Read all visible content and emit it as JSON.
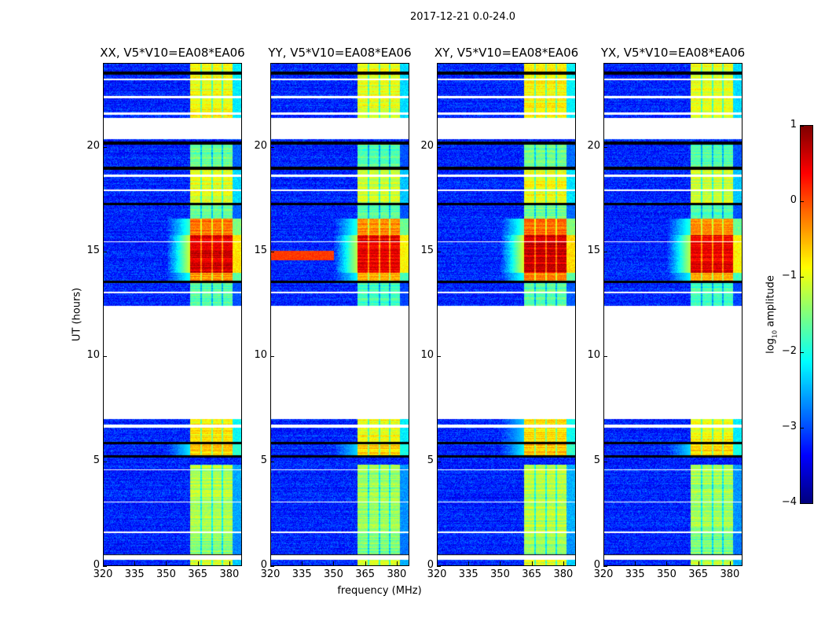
{
  "chart_data": {
    "type": "heatmap",
    "title": "2017-12-21 0.0-24.0",
    "xlabel": "frequency (MHz)",
    "ylabel": "UT (hours)",
    "xlim": [
      320,
      386
    ],
    "ylim": [
      0,
      24
    ],
    "xticks": [
      "320",
      "335",
      "350",
      "365",
      "380"
    ],
    "xtick_values": [
      320,
      335,
      350,
      365,
      380
    ],
    "yticks": [
      "0",
      "5",
      "10",
      "15",
      "20"
    ],
    "ytick_values": [
      0,
      5,
      10,
      15,
      20
    ],
    "colorbar": {
      "label": "log10 amplitude",
      "label_main": "log",
      "label_sub": "10",
      "label_rest": " amplitude",
      "range": [
        -4,
        1
      ],
      "ticks": [
        "1",
        "0",
        "−1",
        "−2",
        "−3",
        "−4"
      ],
      "tick_values": [
        1,
        0,
        -1,
        -2,
        -3,
        -4
      ],
      "colormap": "jet"
    },
    "panels": [
      {
        "title": "XX, V5*V10=EA08*EA06",
        "offset": 0.0
      },
      {
        "title": "YY, V5*V10=EA08*EA06",
        "offset": -0.1
      },
      {
        "title": "XY, V5*V10=EA08*EA06",
        "offset": 0.05
      },
      {
        "title": "YX, V5*V10=EA08*EA06",
        "offset": -0.1
      }
    ],
    "background_level": -3.2,
    "bright_band_mhz": [
      361.5,
      382
    ],
    "subband_edges_mhz": [
      366.7,
      371.9,
      376.9
    ],
    "band_profile": [
      [
        0.0,
        0.27,
        -1.1
      ],
      [
        0.5,
        1.5,
        -1.4
      ],
      [
        1.5,
        4.8,
        -1.25
      ],
      [
        5.2,
        5.8,
        -0.6
      ],
      [
        5.8,
        7.0,
        -0.8
      ],
      [
        12.4,
        13.5,
        -1.7
      ],
      [
        13.6,
        14.0,
        -0.4
      ],
      [
        14.0,
        15.8,
        0.55
      ],
      [
        15.8,
        16.6,
        -0.2
      ],
      [
        16.6,
        17.3,
        -1.6
      ],
      [
        17.3,
        19.0,
        -1.0
      ],
      [
        19.0,
        20.2,
        -1.6
      ],
      [
        21.4,
        24.0,
        -0.9
      ]
    ],
    "flagged_hours": [
      [
        0.27,
        0.5
      ],
      [
        6.6,
        6.75
      ],
      [
        7.0,
        12.4
      ],
      [
        20.4,
        21.4
      ],
      [
        21.55,
        21.65
      ],
      [
        22.35,
        22.45
      ],
      [
        23.2,
        23.3
      ],
      [
        13.0,
        13.08
      ],
      [
        15.45,
        15.5
      ],
      [
        17.9,
        18.0
      ],
      [
        18.6,
        18.7
      ],
      [
        3.0,
        3.05
      ],
      [
        1.55,
        1.6
      ],
      [
        4.55,
        4.6
      ]
    ],
    "gap_hours": [
      0.45,
      5.2,
      5.85,
      13.55,
      17.3,
      19.0,
      20.2,
      23.55
    ]
  }
}
